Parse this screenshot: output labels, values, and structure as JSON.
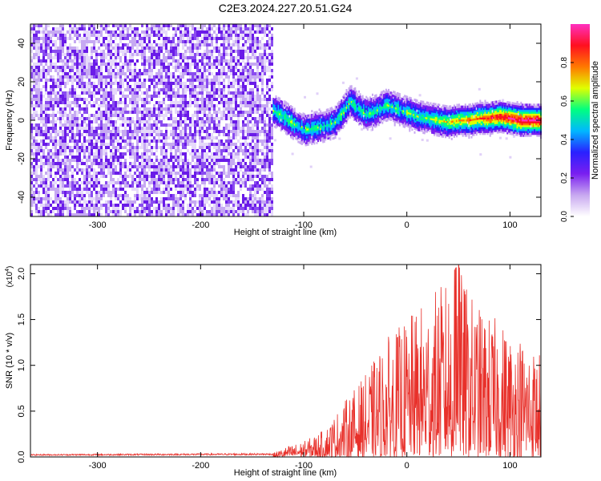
{
  "title": "C2E3.2024.227.20.51.G24",
  "chart_data": [
    {
      "type": "heatmap",
      "xlabel": "Height of straight line (km)",
      "ylabel": "Frequency (Hz)",
      "xlim": [
        -365,
        130
      ],
      "ylim": [
        -50,
        50
      ],
      "xticks": [
        -300,
        -200,
        -100,
        0,
        100
      ],
      "yticks": [
        -40,
        -20,
        0,
        20,
        40
      ],
      "colorbar": {
        "label": "Normalized spectral amplitude",
        "range": [
          0,
          1
        ],
        "ticks": [
          0.0,
          0.2,
          0.4,
          0.6,
          0.8
        ],
        "colors": [
          "#ffffff",
          "#c8a8f0",
          "#7a1ff0",
          "#2a20ff",
          "#00b8ff",
          "#00ff80",
          "#e0ff00",
          "#ff7800",
          "#ff1020",
          "#ff30c0"
        ]
      },
      "noise_region_x": [
        -365,
        -130
      ],
      "signal_track": {
        "x": [
          -130,
          -120,
          -110,
          -100,
          -90,
          -80,
          -70,
          -60,
          -55,
          -50,
          -40,
          -30,
          -20,
          -10,
          0,
          10,
          20,
          30,
          40,
          50,
          60,
          70,
          80,
          90,
          100,
          110,
          120,
          130
        ],
        "freq": [
          5,
          2,
          -2,
          -5,
          -4,
          -3,
          -1,
          6,
          10,
          7,
          3,
          5,
          8,
          6,
          4,
          2,
          1,
          0,
          -1,
          0,
          0,
          1,
          1,
          2,
          1,
          0,
          0,
          0
        ]
      }
    },
    {
      "type": "line",
      "xlabel": "Height of straight line (km)",
      "ylabel": "SNR (10 * v/v)",
      "y_multiplier": "(x10",
      "y_multiplier_exp": "4",
      "y_multiplier_close": ")",
      "xlim": [
        -365,
        130
      ],
      "ylim": [
        0,
        2.1
      ],
      "xticks": [
        -300,
        -200,
        -100,
        0,
        100
      ],
      "yticks": [
        "0.0",
        "0.5",
        "1.0",
        "1.5",
        "2.0"
      ],
      "series": [
        {
          "name": "SNR",
          "color": "#e8302a",
          "envelope_x": [
            -365,
            -130,
            -115,
            -100,
            -80,
            -60,
            -40,
            -20,
            0,
            20,
            40,
            50,
            60,
            70,
            80,
            90,
            100,
            110,
            120,
            130
          ],
          "envelope_peak": [
            0.03,
            0.04,
            0.12,
            0.17,
            0.3,
            0.62,
            0.9,
            1.3,
            1.5,
            1.75,
            1.95,
            2.1,
            1.82,
            1.65,
            1.55,
            1.5,
            1.4,
            1.35,
            1.25,
            1.15
          ]
        }
      ]
    }
  ]
}
